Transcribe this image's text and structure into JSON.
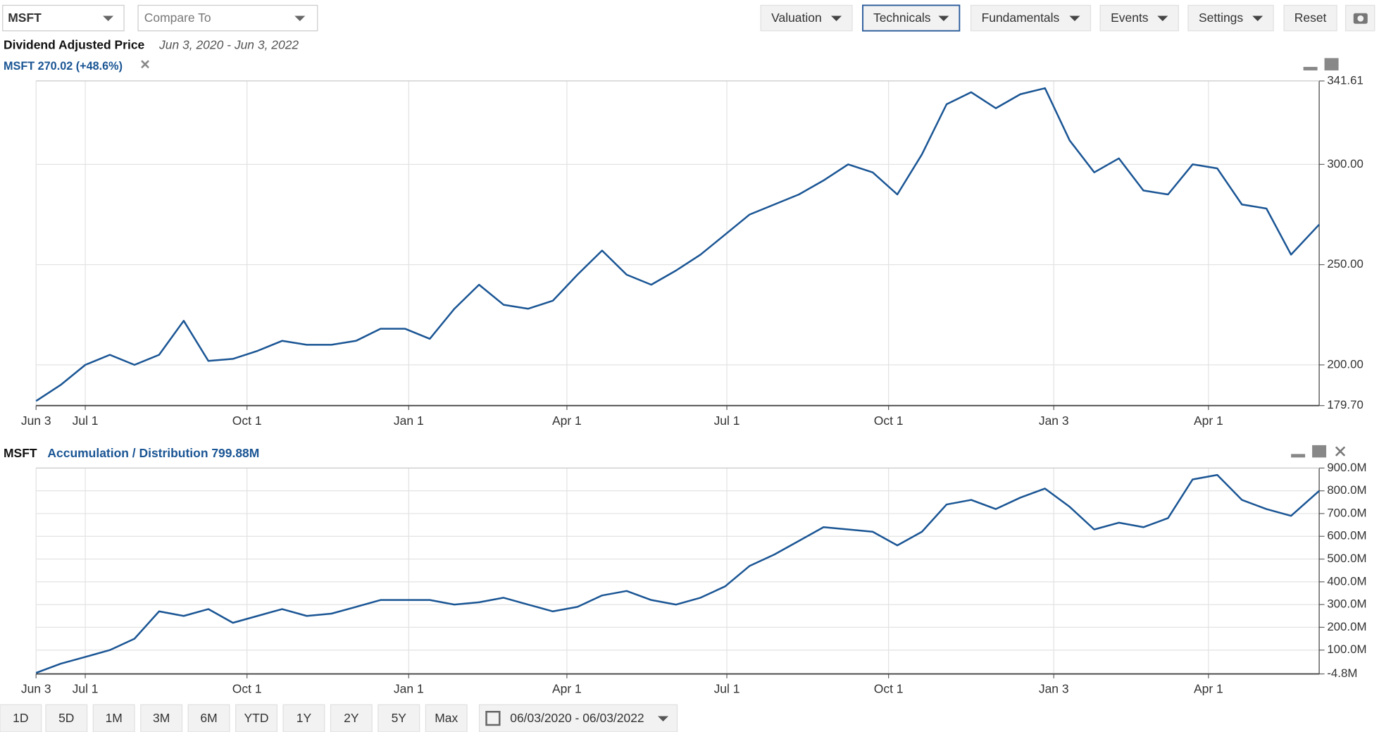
{
  "toolbar": {
    "symbol": "MSFT",
    "compare": "Compare To",
    "menus": [
      "Valuation",
      "Technicals",
      "Fundamentals",
      "Events",
      "Settings"
    ],
    "reset": "Reset"
  },
  "chart_data": [
    {
      "type": "line",
      "title": "Dividend Adjusted Price",
      "subtitle": "Jun 3, 2020 - Jun 3, 2022",
      "x": [
        "2020-06-03",
        "2020-06-17",
        "2020-07-01",
        "2020-07-15",
        "2020-07-29",
        "2020-08-12",
        "2020-08-26",
        "2020-09-09",
        "2020-09-23",
        "2020-10-07",
        "2020-10-21",
        "2020-11-04",
        "2020-11-18",
        "2020-12-02",
        "2020-12-16",
        "2020-12-30",
        "2021-01-13",
        "2021-01-27",
        "2021-02-10",
        "2021-02-24",
        "2021-03-10",
        "2021-03-24",
        "2021-04-07",
        "2021-04-21",
        "2021-05-05",
        "2021-05-19",
        "2021-06-02",
        "2021-06-16",
        "2021-06-30",
        "2021-07-14",
        "2021-07-28",
        "2021-08-11",
        "2021-08-25",
        "2021-09-08",
        "2021-09-22",
        "2021-10-06",
        "2021-10-20",
        "2021-11-03",
        "2021-11-17",
        "2021-12-01",
        "2021-12-15",
        "2021-12-29",
        "2022-01-12",
        "2022-01-26",
        "2022-02-09",
        "2022-02-23",
        "2022-03-09",
        "2022-03-23",
        "2022-04-06",
        "2022-04-20",
        "2022-05-04",
        "2022-05-18",
        "2022-06-03"
      ],
      "series": [
        {
          "name": "MSFT 270.02 (+48.6%)",
          "color": "#1a5594",
          "values": [
            182,
            190,
            200,
            205,
            200,
            205,
            222,
            202,
            203,
            207,
            212,
            210,
            210,
            212,
            218,
            218,
            213,
            228,
            240,
            230,
            228,
            232,
            245,
            257,
            245,
            240,
            247,
            255,
            265,
            275,
            280,
            285,
            292,
            300,
            296,
            285,
            305,
            330,
            336,
            328,
            335,
            338,
            312,
            296,
            303,
            287,
            285,
            300,
            298,
            280,
            278,
            255,
            270.02
          ]
        }
      ],
      "xlim": [
        "2020-06-03",
        "2022-06-03"
      ],
      "xticks": [
        {
          "value": "2020-06-03",
          "label": "Jun 3"
        },
        {
          "value": "2020-07-01",
          "label": "Jul 1"
        },
        {
          "value": "2020-10-01",
          "label": "Oct 1"
        },
        {
          "value": "2021-01-01",
          "label": "Jan 1"
        },
        {
          "value": "2021-04-01",
          "label": "Apr 1"
        },
        {
          "value": "2021-07-01",
          "label": "Jul 1"
        },
        {
          "value": "2021-10-01",
          "label": "Oct 1"
        },
        {
          "value": "2022-01-03",
          "label": "Jan 3"
        },
        {
          "value": "2022-04-01",
          "label": "Apr 1"
        }
      ],
      "ylim": [
        179.7,
        341.61
      ],
      "yticks": [
        {
          "value": 179.7,
          "label": "179.70"
        },
        {
          "value": 200,
          "label": "200.00"
        },
        {
          "value": 250,
          "label": "250.00"
        },
        {
          "value": 300,
          "label": "300.00"
        },
        341.61
      ],
      "grid": true
    },
    {
      "type": "line",
      "title": "MSFT",
      "x": [
        "2020-06-03",
        "2020-06-17",
        "2020-07-01",
        "2020-07-15",
        "2020-07-29",
        "2020-08-12",
        "2020-08-26",
        "2020-09-09",
        "2020-09-23",
        "2020-10-07",
        "2020-10-21",
        "2020-11-04",
        "2020-11-18",
        "2020-12-02",
        "2020-12-16",
        "2020-12-30",
        "2021-01-13",
        "2021-01-27",
        "2021-02-10",
        "2021-02-24",
        "2021-03-10",
        "2021-03-24",
        "2021-04-07",
        "2021-04-21",
        "2021-05-05",
        "2021-05-19",
        "2021-06-02",
        "2021-06-16",
        "2021-06-30",
        "2021-07-14",
        "2021-07-28",
        "2021-08-11",
        "2021-08-25",
        "2021-09-08",
        "2021-09-22",
        "2021-10-06",
        "2021-10-20",
        "2021-11-03",
        "2021-11-17",
        "2021-12-01",
        "2021-12-15",
        "2021-12-29",
        "2022-01-12",
        "2022-01-26",
        "2022-02-09",
        "2022-02-23",
        "2022-03-09",
        "2022-03-23",
        "2022-04-06",
        "2022-04-20",
        "2022-05-04",
        "2022-05-18",
        "2022-06-03"
      ],
      "series": [
        {
          "name": "Accumulation / Distribution 799.88M",
          "color": "#1a5594",
          "values": [
            0,
            40,
            70,
            100,
            150,
            270,
            250,
            280,
            220,
            250,
            280,
            250,
            260,
            290,
            320,
            320,
            320,
            300,
            310,
            330,
            300,
            270,
            290,
            340,
            360,
            320,
            300,
            330,
            380,
            470,
            520,
            580,
            640,
            630,
            620,
            560,
            620,
            740,
            760,
            720,
            770,
            810,
            730,
            630,
            660,
            640,
            680,
            850,
            870,
            760,
            720,
            690,
            799.88
          ]
        }
      ],
      "xlim": [
        "2020-06-03",
        "2022-06-03"
      ],
      "xticks": [
        {
          "value": "2020-06-03",
          "label": "Jun 3"
        },
        {
          "value": "2020-07-01",
          "label": "Jul 1"
        },
        {
          "value": "2020-10-01",
          "label": "Oct 1"
        },
        {
          "value": "2021-01-01",
          "label": "Jan 1"
        },
        {
          "value": "2021-04-01",
          "label": "Apr 1"
        },
        {
          "value": "2021-07-01",
          "label": "Jul 1"
        },
        {
          "value": "2021-10-01",
          "label": "Oct 1"
        },
        {
          "value": "2022-01-03",
          "label": "Jan 3"
        },
        {
          "value": "2022-04-01",
          "label": "Apr 1"
        }
      ],
      "ylim": [
        -4.8,
        900
      ],
      "yticks": [
        {
          "value": -4.8,
          "label": "-4.8M"
        },
        {
          "value": 100,
          "label": "100.0M"
        },
        {
          "value": 200,
          "label": "200.0M"
        },
        {
          "value": 300,
          "label": "300.0M"
        },
        {
          "value": 400,
          "label": "400.0M"
        },
        {
          "value": 500,
          "label": "500.0M"
        },
        {
          "value": 600,
          "label": "600.0M"
        },
        {
          "value": 700,
          "label": "700.0M"
        },
        {
          "value": 800,
          "label": "800.0M"
        },
        {
          "value": 900,
          "label": "900.0M"
        }
      ],
      "grid": true
    }
  ],
  "range_buttons": [
    "1D",
    "5D",
    "1M",
    "3M",
    "6M",
    "YTD",
    "1Y",
    "2Y",
    "5Y",
    "Max"
  ],
  "date_range": "06/03/2020 - 06/03/2022"
}
